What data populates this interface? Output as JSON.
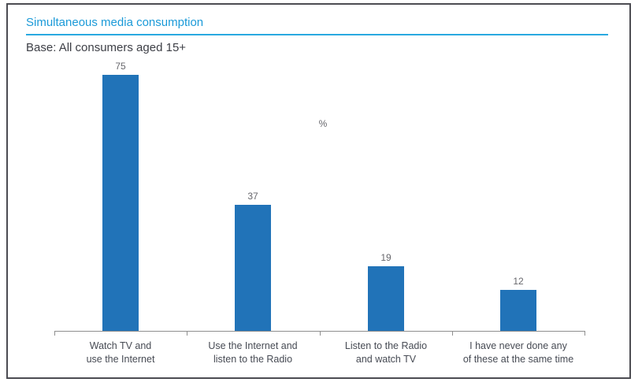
{
  "header": {
    "title": "Simultaneous media consumption",
    "base_note": "Base: All consumers aged 15+"
  },
  "colors": {
    "title_blue": "#1b9ad8",
    "rule_blue": "#29a9e0",
    "bar_blue": "#2173b8",
    "axis_gray": "#8f8f8f"
  },
  "chart_data": {
    "type": "bar",
    "title": "Simultaneous media consumption",
    "subtitle": "Base: All consumers aged 15+",
    "xlabel": "",
    "ylabel": "%",
    "ylim": [
      0,
      78
    ],
    "grid": false,
    "legend": "none",
    "categories": [
      "Watch TV and use the Internet",
      "Use the Internet and listen to the Radio",
      "Listen to the Radio and watch TV",
      "I have never done any of these at the same time"
    ],
    "category_lines": [
      [
        "Watch TV and",
        "use the Internet"
      ],
      [
        "Use the Internet and",
        "listen to the Radio"
      ],
      [
        "Listen to the Radio",
        "and watch TV"
      ],
      [
        "I have never done any",
        "of these at the same time"
      ]
    ],
    "values": [
      75,
      37,
      19,
      12
    ]
  }
}
